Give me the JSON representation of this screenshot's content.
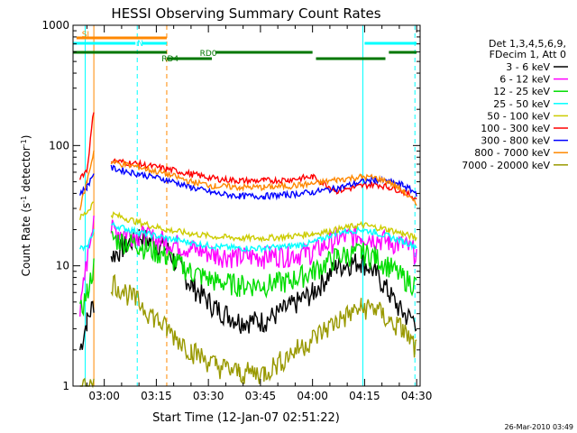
{
  "chart_data": {
    "type": "line",
    "title": "HESSI Observing Summary Count Rates",
    "xlabel": "Start Time (12-Jan-07 02:51:22)",
    "ylabel_main": "Count Rate (s",
    "ylabel_sup1": "-1",
    "ylabel_mid": " detector",
    "ylabel_sup2": "-1",
    "ylabel_end": ")",
    "yscale": "log",
    "ylim": [
      1,
      1000
    ],
    "xlim_min": [
      171,
      271
    ],
    "y_ticks": [
      {
        "v": 1,
        "label": "1"
      },
      {
        "v": 10,
        "label": "10"
      },
      {
        "v": 100,
        "label": "100"
      },
      {
        "v": 1000,
        "label": "1000"
      }
    ],
    "x_ticks": [
      {
        "v": 180,
        "label": "03:00"
      },
      {
        "v": 195,
        "label": "03:15"
      },
      {
        "v": 210,
        "label": "03:30"
      },
      {
        "v": 225,
        "label": "03:45"
      },
      {
        "v": 240,
        "label": "04:00"
      },
      {
        "v": 255,
        "label": "04:15"
      },
      {
        "v": 270,
        "label": "04:30"
      }
    ],
    "legend_header": [
      "Det 1,3,4,5,6,9,",
      "FDecim 1, Att 0"
    ],
    "series": [
      {
        "name": "3 - 6 keV",
        "color": "#000000",
        "values": [
          2,
          3.5,
          5,
          12,
          18,
          14,
          7,
          4.5,
          3.5,
          3.5,
          4.5,
          6,
          10,
          11,
          9,
          6,
          4,
          3.5
        ]
      },
      {
        "name": "6 - 12 keV",
        "color": "#ff00ff",
        "values": [
          4,
          11,
          28,
          20,
          18,
          16,
          14,
          12.5,
          12,
          12,
          12.5,
          13,
          17,
          18,
          17,
          16,
          15,
          13
        ]
      },
      {
        "name": "12 - 25 keV",
        "color": "#00dd00",
        "values": [
          4,
          6,
          10,
          17,
          15,
          12,
          9,
          7.5,
          7,
          7,
          7.5,
          9,
          12,
          13,
          12,
          10,
          8,
          7
        ]
      },
      {
        "name": "25 - 50 keV",
        "color": "#00ffff",
        "values": [
          14,
          14,
          20,
          22,
          19,
          17,
          15.5,
          14.5,
          14,
          14,
          14.5,
          15.5,
          19,
          20,
          19,
          17.5,
          16,
          14.5
        ]
      },
      {
        "name": "50 - 100 keV",
        "color": "#cccc00",
        "values": [
          25,
          28,
          34,
          27,
          23,
          20,
          18.5,
          17.5,
          17,
          17,
          17.5,
          18.5,
          20,
          22,
          21,
          20,
          18.5,
          17
        ]
      },
      {
        "name": "100 - 300 keV",
        "color": "#ff0000",
        "values": [
          55,
          62,
          200,
          75,
          70,
          64,
          58,
          53,
          51,
          51,
          52,
          55,
          42,
          46,
          48,
          45,
          42,
          36
        ]
      },
      {
        "name": "300 - 800 keV",
        "color": "#0000ff",
        "values": [
          40,
          45,
          60,
          65,
          58,
          52,
          45,
          40,
          38,
          38,
          39,
          41,
          44,
          50,
          52,
          50,
          47,
          40
        ]
      },
      {
        "name": "800 - 7000 keV",
        "color": "#ff8800",
        "values": [
          30,
          50,
          90,
          73,
          66,
          58,
          50,
          46,
          45,
          45,
          46,
          48,
          52,
          55,
          54,
          50,
          42,
          32
        ]
      },
      {
        "name": "7000 - 20000 keV",
        "color": "#999900",
        "values": [
          1,
          1,
          1,
          7.5,
          5,
          3,
          2,
          1.5,
          1.3,
          1.3,
          1.8,
          2.5,
          3.5,
          4.5,
          4.5,
          3.5,
          3,
          2
        ]
      }
    ],
    "series_x_min": [
      173,
      175,
      177,
      182,
      190,
      198,
      205,
      212,
      219,
      226,
      233,
      240,
      247,
      254,
      258,
      262,
      266,
      270
    ],
    "flag_labels": [
      {
        "text": "SI",
        "x": 173,
        "color": "#ff8800"
      },
      {
        "text": "N",
        "x": 189,
        "color": "#00ffff"
      },
      {
        "text": "RD0",
        "x": 207,
        "color": "#007700"
      },
      {
        "text": "RD4",
        "x": 196,
        "color": "#007700"
      }
    ],
    "footer_date": "26-Mar-2010 03:49"
  }
}
